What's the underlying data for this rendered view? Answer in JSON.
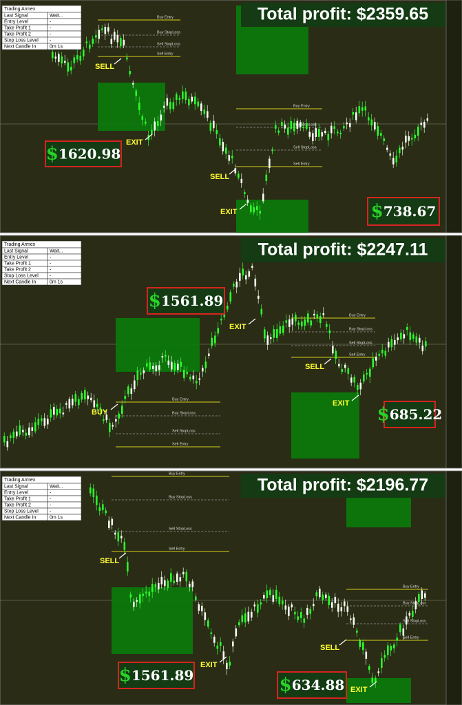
{
  "panels": [
    {
      "info_table": {
        "title": "Trading Armex",
        "rows": [
          [
            "Last Signal",
            "Wait..."
          ],
          [
            "Entry Level",
            "-"
          ],
          [
            "Take Profit 1",
            "-"
          ],
          [
            "Take Profit 2",
            "-"
          ],
          [
            "Stop Loss Level",
            "-"
          ],
          [
            "Next Candle In",
            "0m 1s"
          ]
        ]
      },
      "total_profit": "Total profit: $2359.65",
      "profit_boxes": [
        {
          "symbol": "$",
          "amount": "1620.98"
        },
        {
          "symbol": "$",
          "amount": "738.67"
        }
      ],
      "signals": [
        "SELL",
        "EXIT",
        "SELL",
        "EXIT"
      ],
      "levels": [
        "Buy Entry",
        "Buy StopLoss",
        "Sell StopLoss",
        "Sell Entry",
        "Buy Entry",
        "Buy StopLoss",
        "Sell StopLoss",
        "Sell Entry"
      ]
    },
    {
      "info_table": {
        "title": "Trading Armex",
        "rows": [
          [
            "Last Signal",
            "Wait..."
          ],
          [
            "Entry Level",
            "-"
          ],
          [
            "Take Profit 1",
            "-"
          ],
          [
            "Take Profit 2",
            "-"
          ],
          [
            "Stop Loss Level",
            "-"
          ],
          [
            "Next Candle In",
            "0m 1s"
          ]
        ]
      },
      "total_profit": "Total profit: $2247.11",
      "profit_boxes": [
        {
          "symbol": "$",
          "amount": "1561.89"
        },
        {
          "symbol": "$",
          "amount": "685.22"
        }
      ],
      "signals": [
        "EXIT",
        "BUY",
        "SELL",
        "EXIT"
      ],
      "levels": [
        "Buy Entry",
        "Buy StopLoss",
        "Sell StopLoss",
        "Sell Entry",
        "Buy Entry",
        "Buy StopLoss",
        "Sell StopLoss",
        "Sell Entry"
      ]
    },
    {
      "info_table": {
        "title": "Trading Armex",
        "rows": [
          [
            "Last Signal",
            "Wait..."
          ],
          [
            "Entry Level",
            "-"
          ],
          [
            "Take Profit 1",
            "-"
          ],
          [
            "Take Profit 2",
            "-"
          ],
          [
            "Stop Loss Level",
            "-"
          ],
          [
            "Next Candle In",
            "0m 1s"
          ]
        ]
      },
      "total_profit": "Total profit: $2196.77",
      "profit_boxes": [
        {
          "symbol": "$",
          "amount": "1561.89"
        },
        {
          "symbol": "$",
          "amount": "634.88"
        }
      ],
      "signals": [
        "SELL",
        "EXIT",
        "SELL",
        "EXIT"
      ],
      "levels": [
        "Buy Entry",
        "Buy StopLoss",
        "Sell StopLoss",
        "Sell Entry",
        "Buy Entry",
        "Buy StopLoss",
        "Sell StopLoss",
        "Sell Entry"
      ]
    }
  ]
}
